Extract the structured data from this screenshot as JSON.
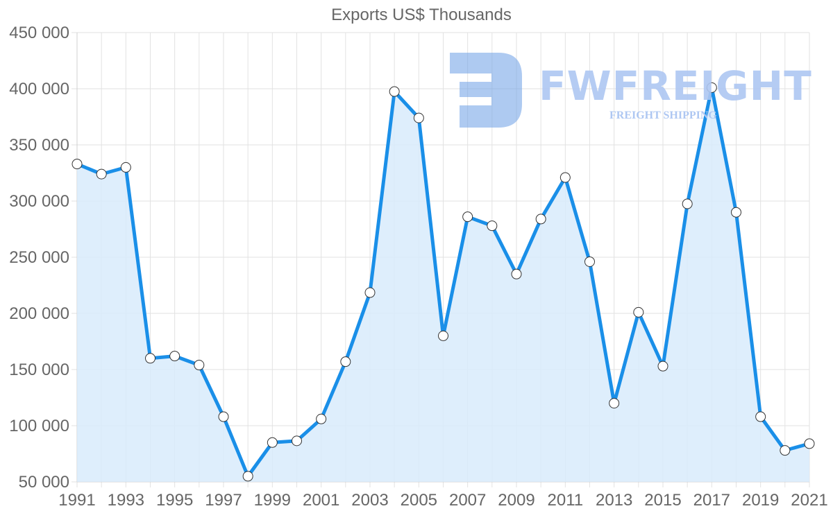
{
  "chart_data": {
    "type": "area",
    "title": "Exports US$ Thousands",
    "xlabel": "",
    "ylabel": "",
    "ylim": [
      50000,
      450000
    ],
    "yticks": [
      50000,
      100000,
      150000,
      200000,
      250000,
      300000,
      350000,
      400000,
      450000
    ],
    "ytick_labels": [
      "50 000",
      "100 000",
      "150 000",
      "200 000",
      "250 000",
      "300 000",
      "350 000",
      "400 000",
      "450 000"
    ],
    "xtick_labels": [
      "1991",
      "1993",
      "1995",
      "1997",
      "1999",
      "2001",
      "2003",
      "2005",
      "2007",
      "2009",
      "2011",
      "2013",
      "2015",
      "2017",
      "2019",
      "2021"
    ],
    "grid": true,
    "legend": null,
    "categories": [
      1991,
      1992,
      1993,
      1994,
      1995,
      1996,
      1997,
      1998,
      1999,
      2000,
      2001,
      2002,
      2003,
      2004,
      2005,
      2006,
      2007,
      2008,
      2009,
      2010,
      2011,
      2012,
      2013,
      2014,
      2015,
      2016,
      2017,
      2018,
      2019,
      2020,
      2021
    ],
    "series": [
      {
        "name": "Exports",
        "color": "#1a8fe8",
        "fill": "#d8ebfb",
        "values": [
          333000,
          324000,
          330000,
          160000,
          162000,
          154000,
          108000,
          55000,
          85000,
          86500,
          106000,
          157000,
          218500,
          397500,
          374000,
          180000,
          286000,
          278000,
          235000,
          284000,
          321000,
          246000,
          120000,
          201000,
          153000,
          297500,
          401000,
          290000,
          108000,
          78000,
          84000
        ]
      }
    ]
  },
  "watermark": {
    "brand": "FWFREIGHT",
    "tagline": "FREIGHT SHIPPING",
    "color": "#aec7f2"
  }
}
